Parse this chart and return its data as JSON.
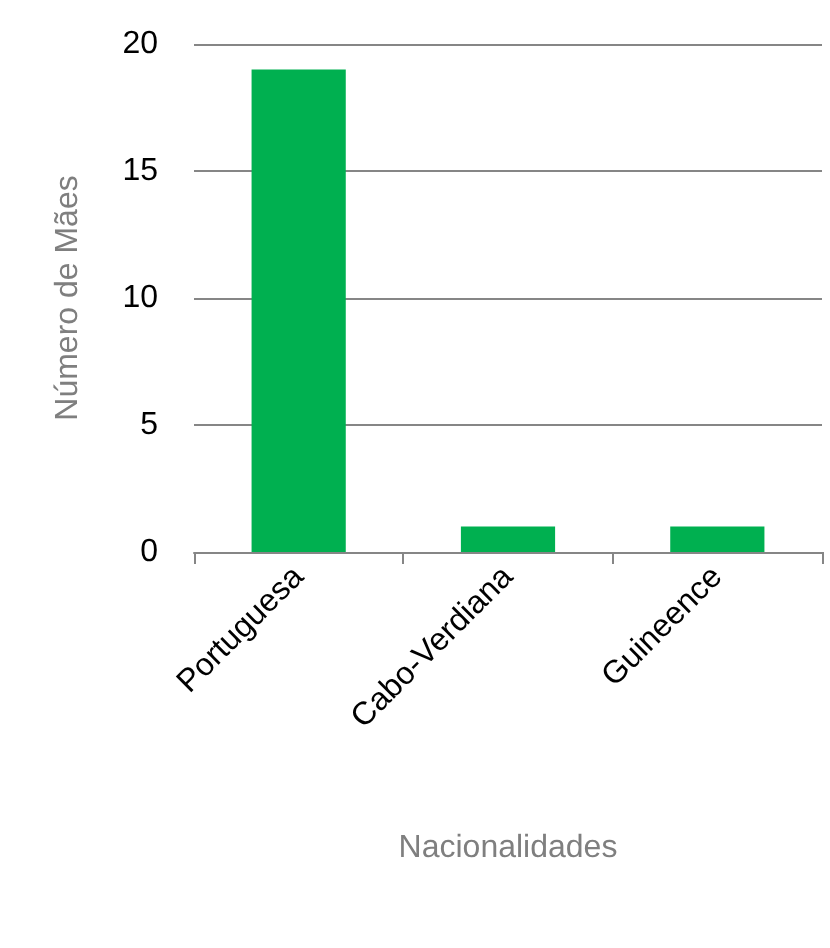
{
  "chart_data": {
    "type": "bar",
    "xlabel": "Nacionalidades",
    "ylabel": "Número de Mães",
    "categories": [
      "Portuguesa",
      "Cabo-Verdiana",
      "Guineence"
    ],
    "values": [
      19,
      1,
      1
    ],
    "color": "#00b050",
    "ylim": [
      0,
      20
    ],
    "yticks": [
      0,
      5,
      10,
      15,
      20
    ],
    "grid": "y"
  }
}
